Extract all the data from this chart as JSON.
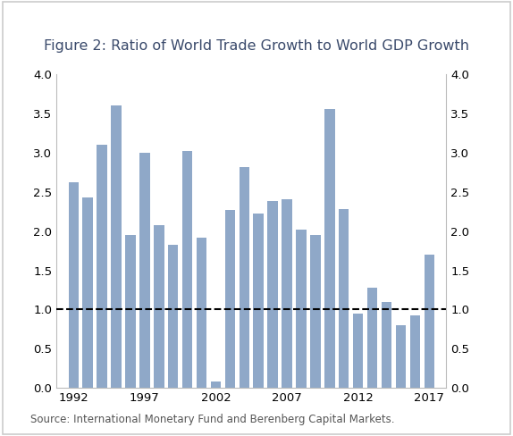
{
  "title": "Figure 2: Ratio of World Trade Growth to World GDP Growth",
  "years": [
    1992,
    1993,
    1994,
    1995,
    1996,
    1997,
    1998,
    1999,
    2000,
    2001,
    2002,
    2003,
    2004,
    2005,
    2006,
    2007,
    2008,
    2009,
    2010,
    2011,
    2012,
    2013,
    2014,
    2015,
    2016,
    2017
  ],
  "values": [
    2.62,
    2.43,
    3.1,
    3.6,
    1.95,
    3.0,
    2.07,
    1.82,
    3.02,
    1.92,
    0.08,
    2.27,
    2.82,
    2.22,
    2.38,
    2.41,
    2.02,
    1.95,
    3.55,
    2.28,
    0.95,
    1.28,
    1.1,
    0.8,
    0.93,
    1.7
  ],
  "bar_color": "#8fa8c8",
  "dashed_line_y": 1.0,
  "dashed_line_color": "#000000",
  "ylim": [
    0.0,
    4.0
  ],
  "yticks": [
    0.0,
    0.5,
    1.0,
    1.5,
    2.0,
    2.5,
    3.0,
    3.5,
    4.0
  ],
  "xtick_labels": [
    "1992",
    "1997",
    "2002",
    "2007",
    "2012",
    "2017"
  ],
  "xtick_positions": [
    1992,
    1997,
    2002,
    2007,
    2012,
    2017
  ],
  "source_text": "Source: International Monetary Fund and Berenberg Capital Markets.",
  "background_color": "#ffffff",
  "outer_border_color": "#cccccc",
  "title_color": "#3a4a6b",
  "title_fontsize": 11.5,
  "tick_fontsize": 9.5,
  "source_fontsize": 8.5,
  "spine_color": "#bbbbbb",
  "bar_width": 0.72
}
